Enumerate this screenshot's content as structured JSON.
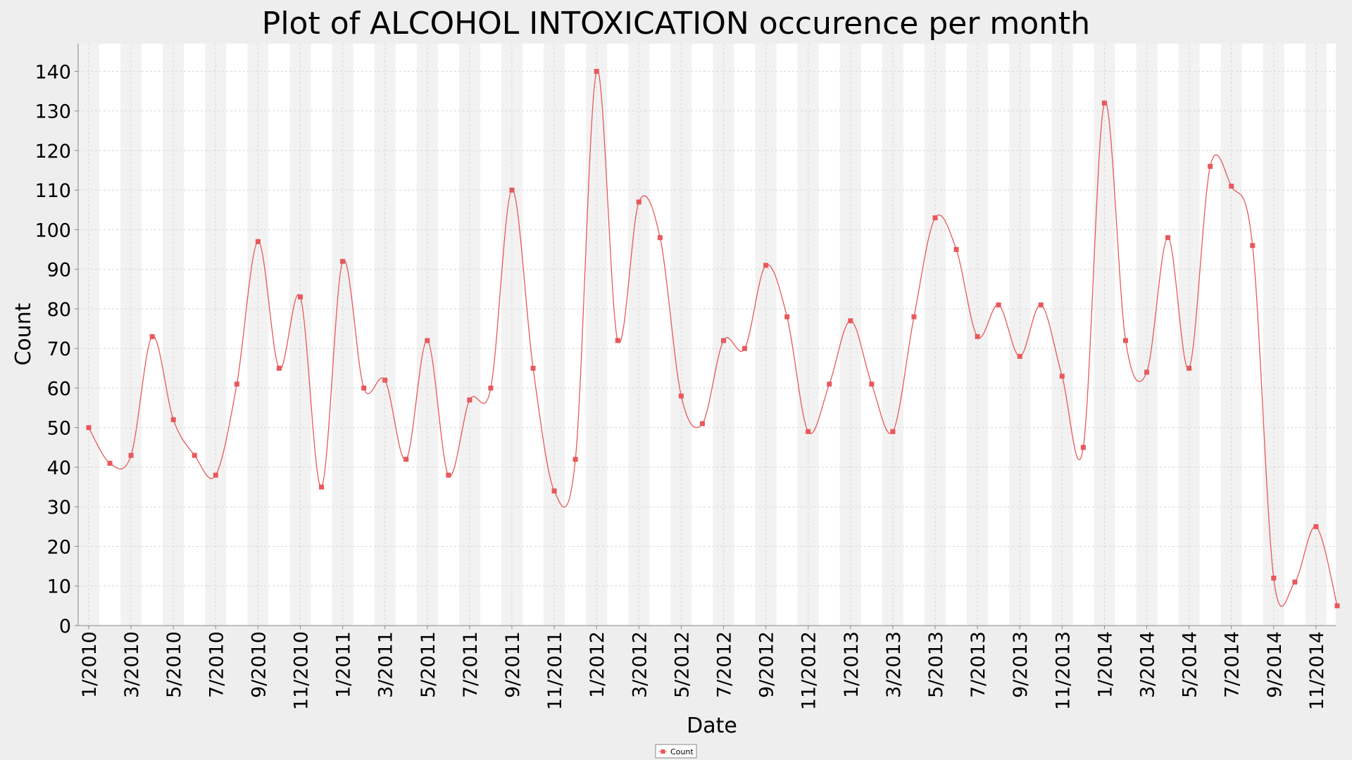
{
  "colors": {
    "series": "#e8585a",
    "background": "#eeeeee",
    "plot_background": "#ffffff",
    "band": "#f2f2f2"
  },
  "chart_data": {
    "type": "line",
    "title": "Plot of ALCOHOL INTOXICATION occurence per month",
    "xlabel": "Date",
    "ylabel": "Count",
    "ylim": [
      0,
      147
    ],
    "yticks": [
      0,
      10,
      20,
      30,
      40,
      50,
      60,
      70,
      80,
      90,
      100,
      110,
      120,
      130,
      140
    ],
    "xtick_labels": [
      "1/2010",
      "3/2010",
      "5/2010",
      "7/2010",
      "9/2010",
      "11/2010",
      "1/2011",
      "3/2011",
      "5/2011",
      "7/2011",
      "9/2011",
      "11/2011",
      "1/2012",
      "3/2012",
      "5/2012",
      "7/2012",
      "9/2012",
      "11/2012",
      "1/2013",
      "3/2013",
      "5/2013",
      "7/2013",
      "9/2013",
      "11/2013",
      "1/2014",
      "3/2014",
      "5/2014",
      "7/2014",
      "9/2014",
      "11/2014"
    ],
    "x": [
      "1/2010",
      "2/2010",
      "3/2010",
      "4/2010",
      "5/2010",
      "6/2010",
      "7/2010",
      "8/2010",
      "9/2010",
      "10/2010",
      "11/2010",
      "12/2010",
      "1/2011",
      "2/2011",
      "3/2011",
      "4/2011",
      "5/2011",
      "6/2011",
      "7/2011",
      "8/2011",
      "9/2011",
      "10/2011",
      "11/2011",
      "12/2011",
      "1/2012",
      "2/2012",
      "3/2012",
      "4/2012",
      "5/2012",
      "6/2012",
      "7/2012",
      "8/2012",
      "9/2012",
      "10/2012",
      "11/2012",
      "12/2012",
      "1/2013",
      "2/2013",
      "3/2013",
      "4/2013",
      "5/2013",
      "6/2013",
      "7/2013",
      "8/2013",
      "9/2013",
      "10/2013",
      "11/2013",
      "12/2013",
      "1/2014",
      "2/2014",
      "3/2014",
      "4/2014",
      "5/2014",
      "6/2014",
      "7/2014",
      "8/2014",
      "9/2014",
      "10/2014",
      "11/2014",
      "12/2014"
    ],
    "series": [
      {
        "name": "Count",
        "values": [
          50,
          41,
          43,
          73,
          52,
          43,
          38,
          61,
          97,
          65,
          83,
          35,
          92,
          60,
          62,
          42,
          72,
          38,
          57,
          60,
          110,
          65,
          34,
          42,
          140,
          72,
          107,
          98,
          58,
          51,
          72,
          70,
          91,
          78,
          49,
          61,
          77,
          61,
          49,
          78,
          103,
          95,
          73,
          81,
          68,
          81,
          63,
          45,
          132,
          72,
          64,
          98,
          65,
          116,
          111,
          96,
          12,
          11,
          25,
          5
        ]
      }
    ],
    "grid": true,
    "legend_position": "bottom-center"
  }
}
